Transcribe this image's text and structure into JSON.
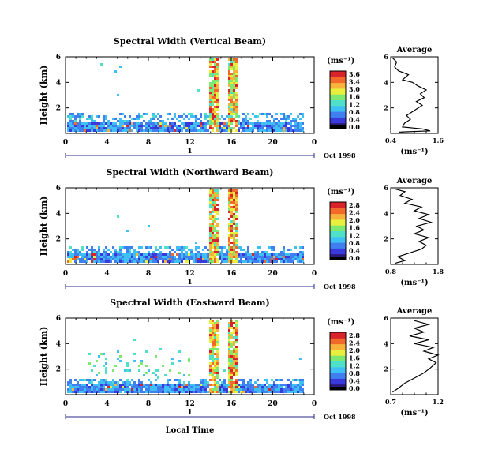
{
  "chart_data": [
    {
      "type": "heatmap",
      "title": "Spectral Width (Vertical Beam)",
      "ylabel": "Height (km)",
      "yticks": [
        "2",
        "4",
        "6"
      ],
      "ylim": [
        0,
        6
      ],
      "xticks": [
        "0",
        "4",
        "8",
        "12",
        "16",
        "20",
        "0"
      ],
      "xlim": [
        0,
        24
      ],
      "day_label": "1",
      "date_label": "Oct 1998",
      "colorbar": {
        "unit": "(ms⁻¹)",
        "ticks": [
          "3.6",
          "3.4",
          "3.0",
          "1.6",
          "1.2",
          "0.8",
          "0.4",
          "0.0"
        ],
        "range": [
          0.0,
          3.6
        ]
      },
      "average": {
        "title": "Average",
        "xlabel": "(ms⁻¹)",
        "xticks": [
          "0.4",
          "1.6"
        ],
        "xlim": [
          0.4,
          1.6
        ],
        "yticks": [
          "2",
          "4",
          "6"
        ],
        "ylim": [
          0,
          6
        ],
        "profile": [
          [
            0.6,
            0.1
          ],
          [
            1.4,
            0.2
          ],
          [
            1.2,
            0.35
          ],
          [
            0.7,
            0.5
          ],
          [
            0.75,
            0.8
          ],
          [
            0.9,
            1.1
          ],
          [
            0.8,
            1.4
          ],
          [
            1.0,
            1.8
          ],
          [
            1.2,
            2.2
          ],
          [
            1.05,
            2.5
          ],
          [
            1.25,
            2.8
          ],
          [
            1.15,
            3.1
          ],
          [
            1.3,
            3.4
          ],
          [
            1.1,
            3.7
          ],
          [
            0.95,
            4.0
          ],
          [
            0.7,
            4.2
          ],
          [
            0.85,
            4.6
          ],
          [
            0.6,
            4.9
          ],
          [
            0.5,
            5.2
          ],
          [
            0.55,
            5.6
          ],
          [
            0.45,
            5.9
          ]
        ]
      }
    },
    {
      "type": "heatmap",
      "title": "Spectral Width (Northward Beam)",
      "ylabel": "Height (km)",
      "yticks": [
        "2",
        "4",
        "6"
      ],
      "ylim": [
        0,
        6
      ],
      "xticks": [
        "0",
        "4",
        "8",
        "12",
        "16",
        "20",
        "0"
      ],
      "xlim": [
        0,
        24
      ],
      "day_label": "1",
      "date_label": "Oct 1998",
      "colorbar": {
        "unit": "(ms⁻¹)",
        "ticks": [
          "2.8",
          "2.4",
          "2.0",
          "1.6",
          "1.2",
          "0.8",
          "0.4",
          "0.0"
        ],
        "range": [
          0.0,
          2.8
        ]
      },
      "average": {
        "title": "Average",
        "xlabel": "(ms⁻¹)",
        "xticks": [
          "0.8",
          "1.8"
        ],
        "xlim": [
          0.8,
          1.8
        ],
        "yticks": [
          "2",
          "4",
          "6"
        ],
        "ylim": [
          0,
          6
        ],
        "profile": [
          [
            0.9,
            0.1
          ],
          [
            1.1,
            0.3
          ],
          [
            0.95,
            0.6
          ],
          [
            1.2,
            0.9
          ],
          [
            1.45,
            1.2
          ],
          [
            1.55,
            1.5
          ],
          [
            1.4,
            1.8
          ],
          [
            1.6,
            2.1
          ],
          [
            1.3,
            2.4
          ],
          [
            1.5,
            2.7
          ],
          [
            1.35,
            3.0
          ],
          [
            1.65,
            3.3
          ],
          [
            1.4,
            3.6
          ],
          [
            1.6,
            3.9
          ],
          [
            1.3,
            4.2
          ],
          [
            1.45,
            4.5
          ],
          [
            1.1,
            4.8
          ],
          [
            1.25,
            5.1
          ],
          [
            1.0,
            5.4
          ],
          [
            1.1,
            5.7
          ],
          [
            0.9,
            5.9
          ]
        ]
      }
    },
    {
      "type": "heatmap",
      "title": "Spectral Width (Eastward Beam)",
      "ylabel": "Height (km)",
      "yticks": [
        "2",
        "4",
        "6"
      ],
      "ylim": [
        0,
        6
      ],
      "xticks": [
        "0",
        "4",
        "8",
        "12",
        "16",
        "20",
        "0"
      ],
      "xlim": [
        0,
        24
      ],
      "day_label": "1",
      "date_label": "Oct 1998",
      "xlabel": "Local Time",
      "colorbar": {
        "unit": "(ms⁻¹)",
        "ticks": [
          "2.8",
          "2.4",
          "2.0",
          "1.6",
          "1.2",
          "0.8",
          "0.4",
          "0.0"
        ],
        "range": [
          0.0,
          2.8
        ]
      },
      "average": {
        "title": "Average",
        "xlabel": "(ms⁻¹)",
        "xticks": [
          "0.7",
          "1.2"
        ],
        "xlim": [
          0.7,
          1.2
        ],
        "yticks": [
          "2",
          "4",
          "6"
        ],
        "ylim": [
          0,
          6
        ],
        "profile": [
          [
            0.72,
            0.2
          ],
          [
            0.78,
            0.5
          ],
          [
            0.85,
            0.9
          ],
          [
            0.95,
            1.3
          ],
          [
            1.05,
            1.7
          ],
          [
            1.12,
            2.1
          ],
          [
            1.18,
            2.5
          ],
          [
            1.1,
            2.8
          ],
          [
            1.2,
            3.1
          ],
          [
            1.05,
            3.4
          ],
          [
            1.15,
            3.7
          ],
          [
            0.95,
            4.0
          ],
          [
            1.1,
            4.3
          ],
          [
            0.9,
            4.6
          ],
          [
            1.05,
            4.9
          ],
          [
            0.95,
            5.2
          ],
          [
            1.1,
            5.5
          ],
          [
            0.95,
            5.8
          ]
        ]
      }
    }
  ]
}
